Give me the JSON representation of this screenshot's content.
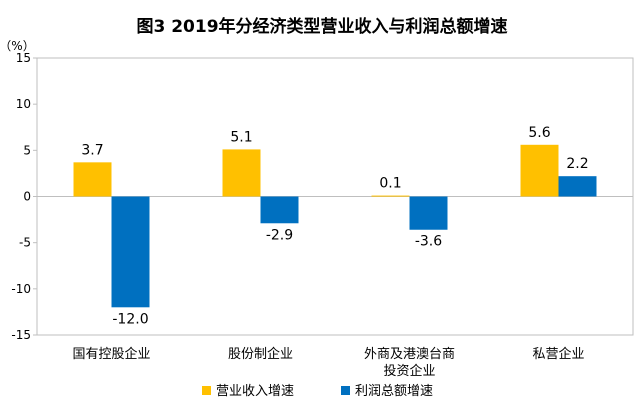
{
  "chart_data": {
    "type": "bar",
    "title": "图3 2019年分经济类型营业收入与利润总额增速",
    "ylabel": "（%）",
    "ylim": [
      -15,
      15
    ],
    "yticks": [
      -15,
      -10,
      -5,
      0,
      5,
      10,
      15
    ],
    "grid": false,
    "legend_position": "bottom",
    "categories": [
      [
        "国有控股企业"
      ],
      [
        "股份制企业"
      ],
      [
        "外商及港澳台商",
        "投资企业"
      ],
      [
        "私营企业"
      ]
    ],
    "series": [
      {
        "name": "营业收入增速",
        "values": [
          3.7,
          5.1,
          0.1,
          5.6
        ],
        "labels": [
          "3.7",
          "5.1",
          "0.1",
          "5.6"
        ]
      },
      {
        "name": "利润总额增速",
        "values": [
          -12.0,
          -2.9,
          -3.6,
          2.2
        ],
        "labels": [
          "-12.0",
          "-2.9",
          "-3.6",
          "2.2"
        ]
      }
    ],
    "colors": [
      "#FFC000",
      "#0070C0"
    ]
  }
}
